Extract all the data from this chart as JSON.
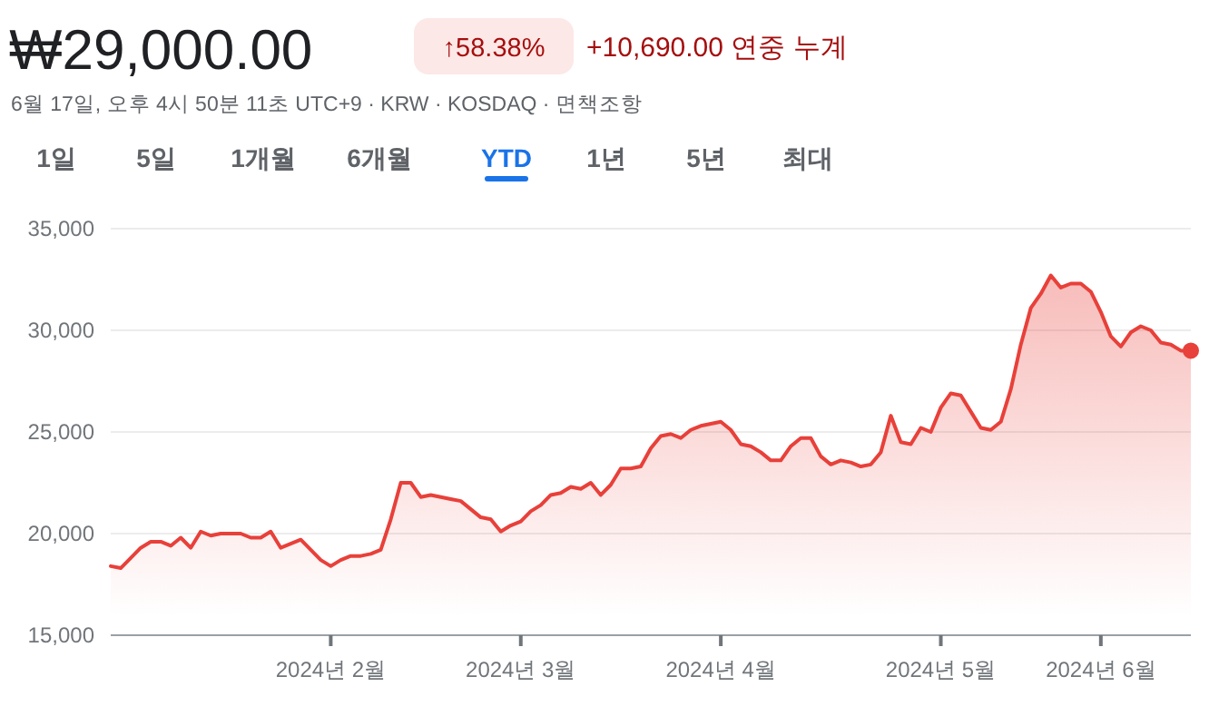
{
  "chart_data": {
    "type": "area",
    "title": "₩29,000.00",
    "subtitle": "6월 17일, 오후 4시 50분 11초 UTC+9 · KRW · KOSDAQ · 면책조항",
    "annotations": [
      "↑58.38%",
      "+10,690.00 연중 누계",
      "1일",
      "5일",
      "1개월",
      "6개월",
      "YTD",
      "1년",
      "5년",
      "최대"
    ],
    "categories": [
      null,
      null,
      null,
      null,
      null,
      null,
      null,
      null,
      null,
      null,
      null,
      null,
      null,
      null,
      null,
      null,
      null,
      null,
      null,
      null,
      null,
      null,
      "2024년 2월",
      null,
      null,
      null,
      null,
      null,
      null,
      null,
      null,
      null,
      null,
      null,
      null,
      null,
      null,
      null,
      null,
      null,
      null,
      "2024년 3월",
      null,
      null,
      null,
      null,
      null,
      null,
      null,
      null,
      null,
      null,
      null,
      null,
      null,
      null,
      null,
      null,
      null,
      null,
      null,
      "2024년 4월",
      null,
      null,
      null,
      null,
      null,
      null,
      null,
      null,
      null,
      null,
      null,
      null,
      null,
      null,
      null,
      null,
      null,
      null,
      null,
      null,
      null,
      "2024년 5월",
      null,
      null,
      null,
      null,
      null,
      null,
      null,
      null,
      null,
      null,
      null,
      null,
      null,
      null,
      null,
      "2024년 6월",
      null,
      null,
      null,
      null,
      null,
      null,
      null,
      null,
      null
    ],
    "ylim": [
      15000,
      35000
    ],
    "yticks": [
      {
        "value": 15000,
        "label": "15,000"
      },
      {
        "value": 20000,
        "label": "20,000"
      },
      {
        "value": 25000,
        "label": "25,000"
      },
      {
        "value": 30000,
        "label": "30,000"
      },
      {
        "value": 35000,
        "label": "35,000"
      }
    ],
    "grid": "y",
    "series": [
      {
        "color": "#e8403a",
        "values": [
          18400,
          18300,
          18800,
          19300,
          19600,
          19600,
          19400,
          19800,
          19300,
          20100,
          19900,
          20000,
          20000,
          20000,
          19800,
          19800,
          20100,
          19300,
          19500,
          19700,
          19200,
          18700,
          18400,
          18700,
          18900,
          18900,
          19000,
          19200,
          20700,
          22500,
          22500,
          21800,
          21900,
          21800,
          21700,
          21600,
          21200,
          20800,
          20700,
          20100,
          20400,
          20600,
          21100,
          21400,
          21900,
          22000,
          22300,
          22200,
          22500,
          21900,
          22400,
          23200,
          23200,
          23300,
          24200,
          24800,
          24900,
          24700,
          25100,
          25300,
          25400,
          25500,
          25100,
          24400,
          24300,
          24000,
          23600,
          23600,
          24300,
          24700,
          24700,
          23800,
          23400,
          23600,
          23500,
          23300,
          23400,
          24000,
          25800,
          24500,
          24400,
          25200,
          25000,
          26200,
          26900,
          26800,
          26000,
          25200,
          25100,
          25500,
          27100,
          29300,
          31100,
          31800,
          32700,
          32100,
          32300,
          32300,
          31900,
          30900,
          29700,
          29200,
          29900,
          30200,
          30000,
          29400,
          29300,
          29000,
          29000
        ]
      }
    ]
  }
}
